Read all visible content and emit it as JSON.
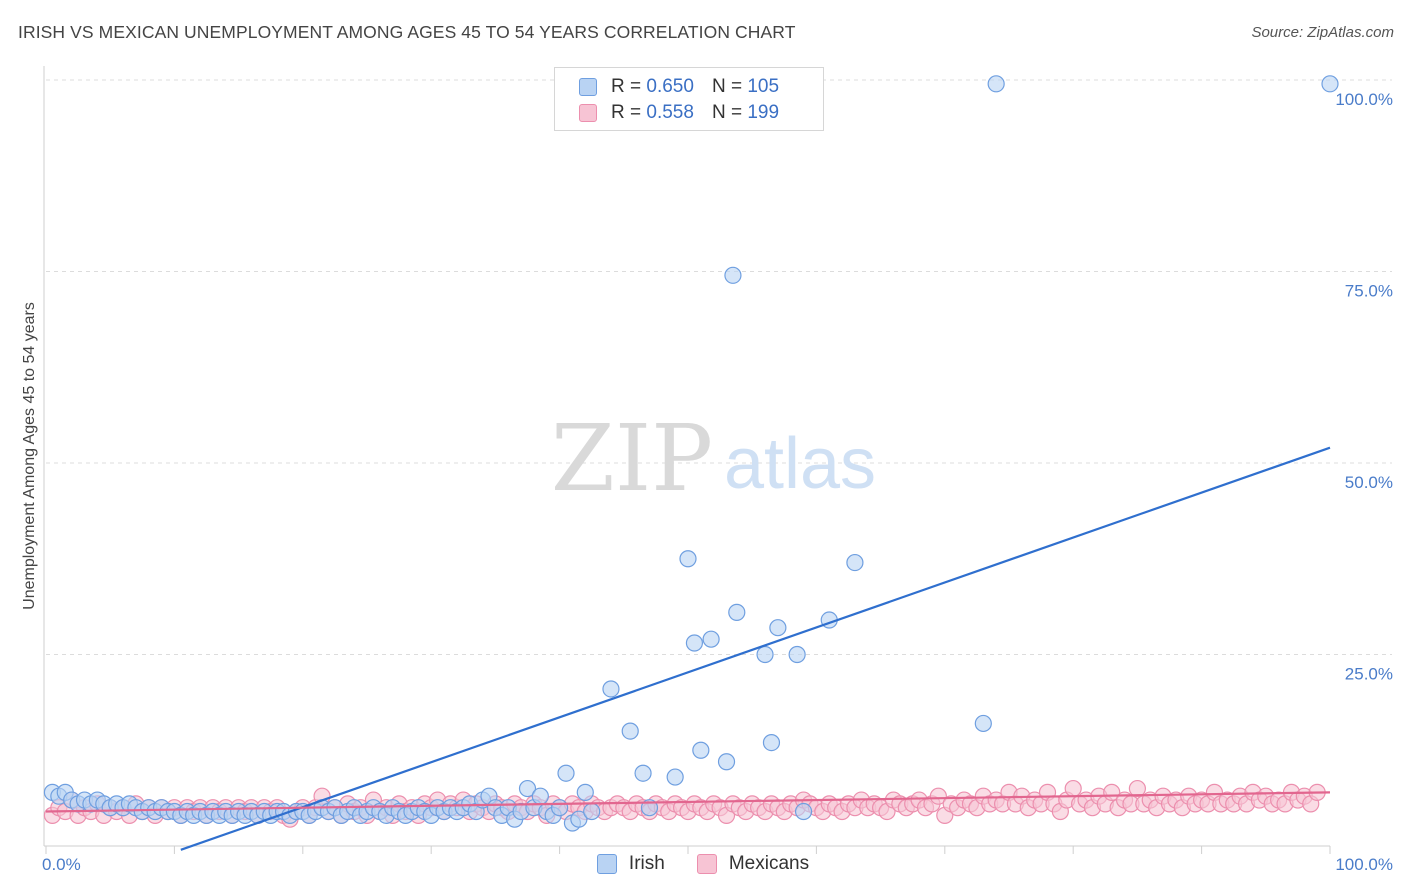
{
  "header": {
    "title": "IRISH VS MEXICAN UNEMPLOYMENT AMONG AGES 45 TO 54 YEARS CORRELATION CHART",
    "source": "Source: ZipAtlas.com"
  },
  "watermark": {
    "zip": "ZIP",
    "atlas": "atlas"
  },
  "legend": {
    "rows": [
      {
        "r_label": "R =",
        "r_value": "0.650",
        "n_label": "N =",
        "n_value": "105"
      },
      {
        "r_label": "R =",
        "r_value": "0.558",
        "n_label": "N =",
        "n_value": "199"
      }
    ]
  },
  "colors": {
    "irish_fill": "#b9d3f3",
    "irish_stroke": "#6f9fe0",
    "irish_line": "#2f6fce",
    "mex_fill": "#f7c4d4",
    "mex_stroke": "#ec8fae",
    "mex_line": "#e2668f",
    "tick_text": "#4a7cc9",
    "grid": "#dcdcdc"
  },
  "chart_data": {
    "type": "scatter",
    "title": "IRISH VS MEXICAN UNEMPLOYMENT AMONG AGES 45 TO 54 YEARS CORRELATION CHART",
    "xlabel": "",
    "ylabel": "Unemployment Among Ages 45 to 54 years",
    "xlim": [
      0,
      100
    ],
    "ylim": [
      0,
      100
    ],
    "x_tick_labels": [
      "0.0%",
      "100.0%"
    ],
    "y_ticks": [
      25,
      50,
      75,
      100
    ],
    "y_tick_labels": [
      "25.0%",
      "50.0%",
      "75.0%",
      "100.0%"
    ],
    "grid": true,
    "legend_position": "top-center",
    "series": [
      {
        "name": "Irish",
        "r": 0.65,
        "n": 105,
        "trend": {
          "x": [
            10.5,
            100
          ],
          "y": [
            -0.5,
            52
          ]
        },
        "points": [
          [
            0.5,
            7
          ],
          [
            1,
            6.5
          ],
          [
            1.5,
            7
          ],
          [
            2,
            6
          ],
          [
            2.5,
            5.5
          ],
          [
            3,
            6
          ],
          [
            3.5,
            5.5
          ],
          [
            4,
            6
          ],
          [
            4.5,
            5.5
          ],
          [
            5,
            5
          ],
          [
            5.5,
            5.5
          ],
          [
            6,
            5
          ],
          [
            6.5,
            5.5
          ],
          [
            7,
            5
          ],
          [
            7.5,
            4.5
          ],
          [
            8,
            5
          ],
          [
            8.5,
            4.5
          ],
          [
            9,
            5
          ],
          [
            9.5,
            4.5
          ],
          [
            10,
            4.5
          ],
          [
            10.5,
            4
          ],
          [
            11,
            4.5
          ],
          [
            11.5,
            4
          ],
          [
            12,
            4.5
          ],
          [
            12.5,
            4
          ],
          [
            13,
            4.5
          ],
          [
            13.5,
            4
          ],
          [
            14,
            4.5
          ],
          [
            14.5,
            4
          ],
          [
            15,
            4.5
          ],
          [
            15.5,
            4
          ],
          [
            16,
            4.5
          ],
          [
            16.5,
            4
          ],
          [
            17,
            4.5
          ],
          [
            17.5,
            4
          ],
          [
            18,
            4.5
          ],
          [
            18.5,
            4.5
          ],
          [
            19,
            4
          ],
          [
            19.5,
            4.5
          ],
          [
            20,
            4.5
          ],
          [
            20.5,
            4
          ],
          [
            21,
            4.5
          ],
          [
            21.5,
            5
          ],
          [
            22,
            4.5
          ],
          [
            22.5,
            5
          ],
          [
            23,
            4
          ],
          [
            23.5,
            4.5
          ],
          [
            24,
            5
          ],
          [
            24.5,
            4
          ],
          [
            25,
            4.5
          ],
          [
            25.5,
            5
          ],
          [
            26,
            4.5
          ],
          [
            26.5,
            4
          ],
          [
            27,
            5
          ],
          [
            27.5,
            4.5
          ],
          [
            28,
            4
          ],
          [
            28.5,
            4.5
          ],
          [
            29,
            5
          ],
          [
            29.5,
            4.5
          ],
          [
            30,
            4
          ],
          [
            30.5,
            5
          ],
          [
            31,
            4.5
          ],
          [
            31.5,
            5
          ],
          [
            32,
            4.5
          ],
          [
            32.5,
            5
          ],
          [
            33,
            5.5
          ],
          [
            33.5,
            4.5
          ],
          [
            34,
            6
          ],
          [
            34.5,
            6.5
          ],
          [
            35,
            5
          ],
          [
            35.5,
            4
          ],
          [
            36,
            5
          ],
          [
            36.5,
            3.5
          ],
          [
            37,
            4.5
          ],
          [
            37.5,
            7.5
          ],
          [
            38,
            5
          ],
          [
            38.5,
            6.5
          ],
          [
            39,
            4.5
          ],
          [
            39.5,
            4
          ],
          [
            40,
            5
          ],
          [
            40.5,
            9.5
          ],
          [
            41,
            3
          ],
          [
            41.5,
            3.5
          ],
          [
            42,
            7
          ],
          [
            42.5,
            4.5
          ],
          [
            44,
            20.5
          ],
          [
            45.5,
            15
          ],
          [
            46.5,
            9.5
          ],
          [
            47,
            5
          ],
          [
            49,
            9
          ],
          [
            50,
            37.5
          ],
          [
            50.5,
            26.5
          ],
          [
            51,
            12.5
          ],
          [
            51.8,
            27
          ],
          [
            53,
            11
          ],
          [
            53.5,
            74.5
          ],
          [
            53.8,
            30.5
          ],
          [
            56,
            25
          ],
          [
            56.5,
            13.5
          ],
          [
            57,
            28.5
          ],
          [
            58.5,
            25
          ],
          [
            59,
            4.5
          ],
          [
            61,
            29.5
          ],
          [
            63,
            37
          ],
          [
            73,
            16
          ],
          [
            74,
            99.5
          ],
          [
            100,
            99.5
          ]
        ]
      },
      {
        "name": "Mexicans",
        "r": 0.558,
        "n": 199,
        "trend": {
          "x": [
            0,
            100
          ],
          "y": [
            4.5,
            7
          ]
        },
        "points": [
          [
            0.5,
            4
          ],
          [
            1,
            5
          ],
          [
            1.5,
            4.5
          ],
          [
            2,
            6
          ],
          [
            2.5,
            4
          ],
          [
            3,
            5
          ],
          [
            3.5,
            4.5
          ],
          [
            4,
            5.5
          ],
          [
            4.5,
            4
          ],
          [
            5,
            5
          ],
          [
            5.5,
            4.5
          ],
          [
            6,
            5
          ],
          [
            6.5,
            4
          ],
          [
            7,
            5.5
          ],
          [
            7.5,
            4.5
          ],
          [
            8,
            5
          ],
          [
            8.5,
            4
          ],
          [
            9,
            5
          ],
          [
            9.5,
            4.5
          ],
          [
            10,
            5
          ],
          [
            10.5,
            4
          ],
          [
            11,
            5
          ],
          [
            11.5,
            4.5
          ],
          [
            12,
            5
          ],
          [
            12.5,
            4
          ],
          [
            13,
            5
          ],
          [
            13.5,
            4.5
          ],
          [
            14,
            5
          ],
          [
            14.5,
            4
          ],
          [
            15,
            5
          ],
          [
            15.5,
            4.5
          ],
          [
            16,
            5
          ],
          [
            16.5,
            4
          ],
          [
            17,
            5
          ],
          [
            17.5,
            4.5
          ],
          [
            18,
            5
          ],
          [
            18.5,
            4
          ],
          [
            19,
            3.5
          ],
          [
            19.5,
            4.5
          ],
          [
            20,
            5
          ],
          [
            20.5,
            4
          ],
          [
            21,
            5
          ],
          [
            21.5,
            6.5
          ],
          [
            22,
            4.5
          ],
          [
            22.5,
            5
          ],
          [
            23,
            4
          ],
          [
            23.5,
            5.5
          ],
          [
            24,
            4.5
          ],
          [
            24.5,
            5
          ],
          [
            25,
            4
          ],
          [
            25.5,
            6
          ],
          [
            26,
            4.5
          ],
          [
            26.5,
            5
          ],
          [
            27,
            4
          ],
          [
            27.5,
            5.5
          ],
          [
            28,
            4.5
          ],
          [
            28.5,
            5
          ],
          [
            29,
            4
          ],
          [
            29.5,
            5.5
          ],
          [
            30,
            5
          ],
          [
            30.5,
            6
          ],
          [
            31,
            4.5
          ],
          [
            31.5,
            5.5
          ],
          [
            32,
            5
          ],
          [
            32.5,
            6
          ],
          [
            33,
            4.5
          ],
          [
            33.5,
            5.5
          ],
          [
            34,
            5
          ],
          [
            34.5,
            4.5
          ],
          [
            35,
            5.5
          ],
          [
            35.5,
            5
          ],
          [
            36,
            4.5
          ],
          [
            36.5,
            5.5
          ],
          [
            37,
            5
          ],
          [
            37.5,
            4.5
          ],
          [
            38,
            5.5
          ],
          [
            38.5,
            5
          ],
          [
            39,
            4
          ],
          [
            39.5,
            5.5
          ],
          [
            40,
            5
          ],
          [
            40.5,
            4.5
          ],
          [
            41,
            5.5
          ],
          [
            41.5,
            5
          ],
          [
            42,
            4.5
          ],
          [
            42.5,
            5.5
          ],
          [
            43,
            5
          ],
          [
            43.5,
            4.5
          ],
          [
            44,
            5
          ],
          [
            44.5,
            5.5
          ],
          [
            45,
            5
          ],
          [
            45.5,
            4.5
          ],
          [
            46,
            5.5
          ],
          [
            46.5,
            5
          ],
          [
            47,
            4.5
          ],
          [
            47.5,
            5.5
          ],
          [
            48,
            5
          ],
          [
            48.5,
            4.5
          ],
          [
            49,
            5.5
          ],
          [
            49.5,
            5
          ],
          [
            50,
            4.5
          ],
          [
            50.5,
            5.5
          ],
          [
            51,
            5
          ],
          [
            51.5,
            4.5
          ],
          [
            52,
            5.5
          ],
          [
            52.5,
            5
          ],
          [
            53,
            4
          ],
          [
            53.5,
            5.5
          ],
          [
            54,
            5
          ],
          [
            54.5,
            4.5
          ],
          [
            55,
            5.5
          ],
          [
            55.5,
            5
          ],
          [
            56,
            4.5
          ],
          [
            56.5,
            5.5
          ],
          [
            57,
            5
          ],
          [
            57.5,
            4.5
          ],
          [
            58,
            5.5
          ],
          [
            58.5,
            5
          ],
          [
            59,
            6
          ],
          [
            59.5,
            5.5
          ],
          [
            60,
            5
          ],
          [
            60.5,
            4.5
          ],
          [
            61,
            5.5
          ],
          [
            61.5,
            5
          ],
          [
            62,
            4.5
          ],
          [
            62.5,
            5.5
          ],
          [
            63,
            5
          ],
          [
            63.5,
            6
          ],
          [
            64,
            5
          ],
          [
            64.5,
            5.5
          ],
          [
            65,
            5
          ],
          [
            65.5,
            4.5
          ],
          [
            66,
            6
          ],
          [
            66.5,
            5.5
          ],
          [
            67,
            5
          ],
          [
            67.5,
            5.5
          ],
          [
            68,
            6
          ],
          [
            68.5,
            5
          ],
          [
            69,
            5.5
          ],
          [
            69.5,
            6.5
          ],
          [
            70,
            4
          ],
          [
            70.5,
            5.5
          ],
          [
            71,
            5
          ],
          [
            71.5,
            6
          ],
          [
            72,
            5.5
          ],
          [
            72.5,
            5
          ],
          [
            73,
            6.5
          ],
          [
            73.5,
            5.5
          ],
          [
            74,
            6
          ],
          [
            74.5,
            5.5
          ],
          [
            75,
            7
          ],
          [
            75.5,
            5.5
          ],
          [
            76,
            6.5
          ],
          [
            76.5,
            5
          ],
          [
            77,
            6
          ],
          [
            77.5,
            5.5
          ],
          [
            78,
            7
          ],
          [
            78.5,
            5.5
          ],
          [
            79,
            4.5
          ],
          [
            79.5,
            6
          ],
          [
            80,
            7.5
          ],
          [
            80.5,
            5.5
          ],
          [
            81,
            6
          ],
          [
            81.5,
            5
          ],
          [
            82,
            6.5
          ],
          [
            82.5,
            5.5
          ],
          [
            83,
            7
          ],
          [
            83.5,
            5
          ],
          [
            84,
            6
          ],
          [
            84.5,
            5.5
          ],
          [
            85,
            7.5
          ],
          [
            85.5,
            5.5
          ],
          [
            86,
            6
          ],
          [
            86.5,
            5
          ],
          [
            87,
            6.5
          ],
          [
            87.5,
            5.5
          ],
          [
            88,
            6
          ],
          [
            88.5,
            5
          ],
          [
            89,
            6.5
          ],
          [
            89.5,
            5.5
          ],
          [
            90,
            6
          ],
          [
            90.5,
            5.5
          ],
          [
            91,
            7
          ],
          [
            91.5,
            5.5
          ],
          [
            92,
            6
          ],
          [
            92.5,
            5.5
          ],
          [
            93,
            6.5
          ],
          [
            93.5,
            5.5
          ],
          [
            94,
            7
          ],
          [
            94.5,
            6
          ],
          [
            95,
            6.5
          ],
          [
            95.5,
            5.5
          ],
          [
            96,
            6
          ],
          [
            96.5,
            5.5
          ],
          [
            97,
            7
          ],
          [
            97.5,
            6
          ],
          [
            98,
            6.5
          ],
          [
            98.5,
            5.5
          ],
          [
            99,
            7
          ]
        ]
      }
    ]
  }
}
